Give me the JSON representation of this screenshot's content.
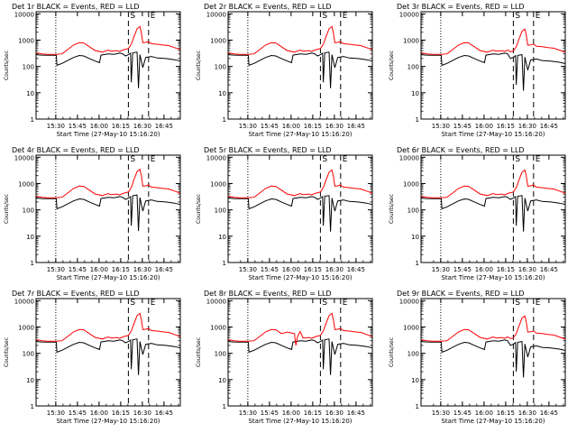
{
  "colors": {
    "events": "#000000",
    "lld": "#ff0000",
    "axes": "#000000",
    "background": "#ffffff"
  },
  "chart_data": [
    {
      "type": "line",
      "title": "Det 1r BLACK = Events, RED = LLD",
      "variant": "a"
    },
    {
      "type": "line",
      "title": "Det 2r BLACK = Events, RED = LLD",
      "variant": "a"
    },
    {
      "type": "line",
      "title": "Det 3r BLACK = Events, RED = LLD",
      "variant": "b"
    },
    {
      "type": "line",
      "title": "Det 4r BLACK = Events, RED = LLD",
      "variant": "c"
    },
    {
      "type": "line",
      "title": "Det 5r BLACK = Events, RED = LLD",
      "variant": "a"
    },
    {
      "type": "line",
      "title": "Det 6r BLACK = Events, RED = LLD",
      "variant": "a"
    },
    {
      "type": "line",
      "title": "Det 7r BLACK = Events, RED = LLD",
      "variant": "a"
    },
    {
      "type": "line",
      "title": "Det 8r BLACK = Events, RED = LLD",
      "variant": "d"
    },
    {
      "type": "line",
      "title": "Det 9r BLACK = Events, RED = LLD",
      "variant": "b"
    }
  ],
  "shared_axes": {
    "xlabel": "Start Time (27-May-10 15:16:20)",
    "ylabel": "Counts/sec",
    "x_unit": "minutes after 15:16:20",
    "xlim": [
      0,
      100
    ],
    "ylim": [
      1,
      12000
    ],
    "yscale": "log",
    "xticks": [
      {
        "x": 13.67,
        "label": "15:30"
      },
      {
        "x": 28.67,
        "label": "15:45"
      },
      {
        "x": 43.67,
        "label": "16:00"
      },
      {
        "x": 58.67,
        "label": "16:15"
      },
      {
        "x": 73.67,
        "label": "16:30"
      },
      {
        "x": 88.67,
        "label": "16:45"
      }
    ],
    "yticks": [
      {
        "y": 1,
        "label": "1"
      },
      {
        "y": 10,
        "label": "10"
      },
      {
        "y": 100,
        "label": "100"
      },
      {
        "y": 1000,
        "label": "1000"
      },
      {
        "y": 10000,
        "label": "10000"
      }
    ],
    "markers": [
      {
        "x": 13.67,
        "style": "dotted",
        "label": ""
      },
      {
        "x": 64,
        "style": "dashed",
        "label": "S"
      },
      {
        "x": 78,
        "style": "dashed",
        "label": "E"
      }
    ]
  },
  "series_profiles": {
    "lld": [
      [
        0,
        330
      ],
      [
        4,
        300
      ],
      [
        8,
        290
      ],
      [
        14,
        290
      ],
      [
        18,
        300
      ],
      [
        22,
        440
      ],
      [
        26,
        650
      ],
      [
        30,
        800
      ],
      [
        33,
        780
      ],
      [
        37,
        560
      ],
      [
        41,
        400
      ],
      [
        46,
        350
      ],
      [
        50,
        420
      ],
      [
        52,
        380
      ],
      [
        56,
        400
      ],
      [
        58,
        370
      ],
      [
        60,
        420
      ],
      [
        62,
        450
      ],
      [
        64,
        480
      ],
      [
        66,
        700
      ],
      [
        68,
        1400
      ],
      [
        70,
        2700
      ],
      [
        72,
        3300
      ],
      [
        73,
        1900
      ],
      [
        74,
        800
      ],
      [
        76,
        820
      ],
      [
        78,
        880
      ],
      [
        80,
        730
      ],
      [
        84,
        700
      ],
      [
        88,
        650
      ],
      [
        92,
        620
      ],
      [
        96,
        520
      ],
      [
        100,
        430
      ]
    ],
    "events": [
      [
        0,
        280
      ],
      [
        4,
        270
      ],
      [
        8,
        265
      ],
      [
        14,
        265
      ],
      [
        14.5,
        110
      ],
      [
        18,
        130
      ],
      [
        22,
        170
      ],
      [
        26,
        220
      ],
      [
        30,
        260
      ],
      [
        33,
        250
      ],
      [
        37,
        200
      ],
      [
        41,
        160
      ],
      [
        44,
        140
      ],
      [
        45,
        270
      ],
      [
        50,
        300
      ],
      [
        54,
        290
      ],
      [
        58,
        320
      ],
      [
        60,
        300
      ],
      [
        62,
        250
      ],
      [
        64,
        280
      ],
      [
        65.5,
        320
      ],
      [
        66,
        25
      ],
      [
        67,
        330
      ],
      [
        70,
        350
      ],
      [
        71,
        15
      ],
      [
        72,
        280
      ],
      [
        74,
        90
      ],
      [
        76,
        220
      ],
      [
        80,
        240
      ],
      [
        84,
        210
      ],
      [
        90,
        200
      ],
      [
        96,
        180
      ],
      [
        100,
        160
      ]
    ]
  }
}
